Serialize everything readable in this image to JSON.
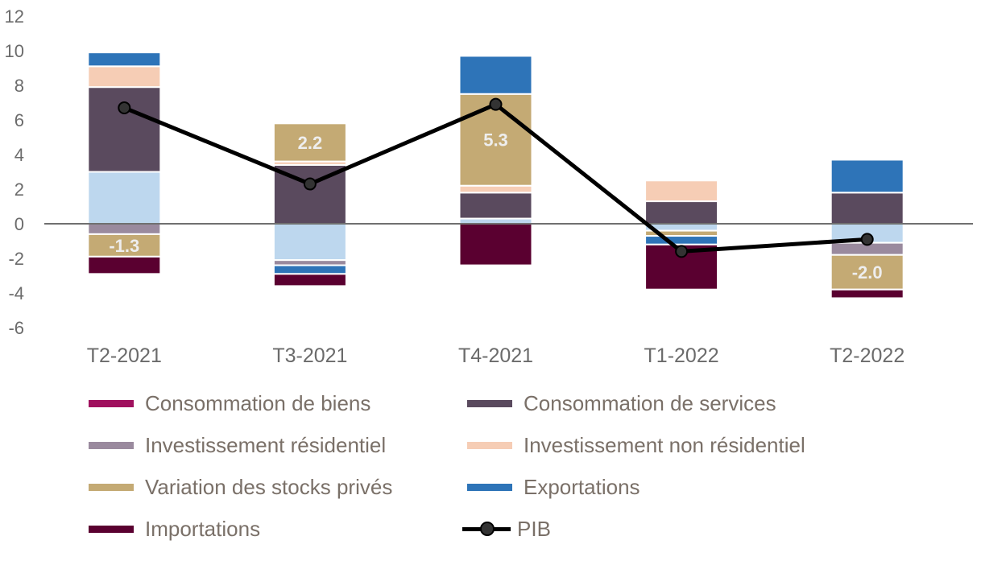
{
  "chart_data": {
    "type": "bar",
    "stacked": true,
    "categories": [
      "T2-2021",
      "T3-2021",
      "T4-2021",
      "T1-2022",
      "T2-2022"
    ],
    "ylim": [
      -6,
      12
    ],
    "yticks": [
      -6,
      -4,
      -2,
      0,
      2,
      4,
      6,
      8,
      10,
      12
    ],
    "grid": false,
    "legend_position": "bottom",
    "series": [
      {
        "name": "Consommation de biens",
        "color": "#a0105e",
        "values": [
          3.0,
          -2.1,
          0.3,
          -0.4,
          -1.1
        ]
      },
      {
        "name": "Consommation de services",
        "color": "#5a4a5e",
        "values": [
          4.9,
          3.4,
          1.5,
          1.3,
          1.8
        ]
      },
      {
        "name": "Investissement résidentiel",
        "color": "#9a8a9e",
        "values": [
          -0.6,
          -0.3,
          0.0,
          0.0,
          -0.7
        ]
      },
      {
        "name": "Investissement non résidentiel",
        "color": "#f6cdb5",
        "values": [
          1.2,
          0.2,
          0.4,
          1.2,
          0.0
        ]
      },
      {
        "name": "Variation des stocks privés",
        "color": "#c4aa74",
        "values": [
          -1.3,
          2.2,
          5.3,
          -0.3,
          -2.0
        ]
      },
      {
        "name": "Exportations",
        "color": "#2e74b8",
        "values": [
          0.8,
          -0.5,
          2.2,
          -0.5,
          1.9
        ]
      },
      {
        "name": "Importations",
        "color": "#5a0030",
        "values": [
          -1.0,
          -0.7,
          -2.4,
          -2.6,
          -0.5
        ]
      }
    ],
    "segment_colors_override": {
      "Consommation de biens": "#bdd7ee",
      "Exportations": "#2e74b8"
    },
    "line": {
      "name": "PIB",
      "color": "#000000",
      "values": [
        6.7,
        2.3,
        6.9,
        -1.6,
        -0.9
      ]
    },
    "data_labels": [
      {
        "category": "T2-2021",
        "series": "Variation des stocks privés",
        "text": "-1.3"
      },
      {
        "category": "T3-2021",
        "series": "Variation des stocks privés",
        "text": "2.2"
      },
      {
        "category": "T4-2021",
        "series": "Variation des stocks privés",
        "text": "5.3"
      },
      {
        "category": "T2-2022",
        "series": "Variation des stocks privés",
        "text": "-2.0"
      }
    ]
  }
}
